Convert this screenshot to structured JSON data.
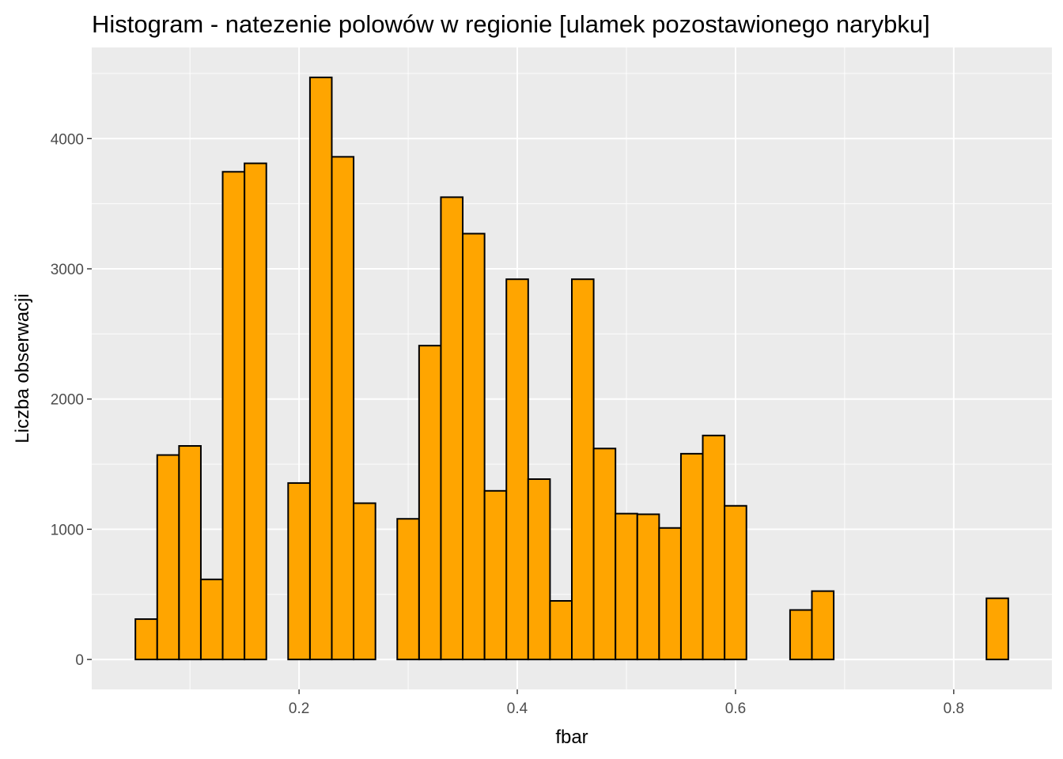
{
  "chart_data": {
    "type": "bar",
    "title": "Histogram - natezenie polowów w regionie [ulamek pozostawionego narybku]",
    "xlabel": "fbar",
    "ylabel": "Liczba obserwacji",
    "bin_width": 0.02,
    "bins": [
      {
        "x_start": 0.05,
        "x_end": 0.07,
        "count": 310
      },
      {
        "x_start": 0.07,
        "x_end": 0.09,
        "count": 1570
      },
      {
        "x_start": 0.09,
        "x_end": 0.11,
        "count": 1640
      },
      {
        "x_start": 0.11,
        "x_end": 0.13,
        "count": 615
      },
      {
        "x_start": 0.13,
        "x_end": 0.15,
        "count": 3745
      },
      {
        "x_start": 0.15,
        "x_end": 0.17,
        "count": 3810
      },
      {
        "x_start": 0.17,
        "x_end": 0.19,
        "count": 0
      },
      {
        "x_start": 0.19,
        "x_end": 0.21,
        "count": 1355
      },
      {
        "x_start": 0.21,
        "x_end": 0.23,
        "count": 4470
      },
      {
        "x_start": 0.23,
        "x_end": 0.25,
        "count": 3860
      },
      {
        "x_start": 0.25,
        "x_end": 0.27,
        "count": 1200
      },
      {
        "x_start": 0.27,
        "x_end": 0.29,
        "count": 0
      },
      {
        "x_start": 0.29,
        "x_end": 0.31,
        "count": 1080
      },
      {
        "x_start": 0.31,
        "x_end": 0.33,
        "count": 2410
      },
      {
        "x_start": 0.33,
        "x_end": 0.35,
        "count": 3550
      },
      {
        "x_start": 0.35,
        "x_end": 0.37,
        "count": 3270
      },
      {
        "x_start": 0.37,
        "x_end": 0.39,
        "count": 1295
      },
      {
        "x_start": 0.39,
        "x_end": 0.41,
        "count": 2920
      },
      {
        "x_start": 0.41,
        "x_end": 0.43,
        "count": 1385
      },
      {
        "x_start": 0.43,
        "x_end": 0.45,
        "count": 450
      },
      {
        "x_start": 0.45,
        "x_end": 0.47,
        "count": 2920
      },
      {
        "x_start": 0.47,
        "x_end": 0.49,
        "count": 1620
      },
      {
        "x_start": 0.49,
        "x_end": 0.51,
        "count": 1120
      },
      {
        "x_start": 0.51,
        "x_end": 0.53,
        "count": 1115
      },
      {
        "x_start": 0.53,
        "x_end": 0.55,
        "count": 1010
      },
      {
        "x_start": 0.55,
        "x_end": 0.57,
        "count": 1580
      },
      {
        "x_start": 0.57,
        "x_end": 0.59,
        "count": 1720
      },
      {
        "x_start": 0.59,
        "x_end": 0.61,
        "count": 1180
      },
      {
        "x_start": 0.61,
        "x_end": 0.63,
        "count": 0
      },
      {
        "x_start": 0.63,
        "x_end": 0.65,
        "count": 0
      },
      {
        "x_start": 0.65,
        "x_end": 0.67,
        "count": 380
      },
      {
        "x_start": 0.67,
        "x_end": 0.69,
        "count": 525
      },
      {
        "x_start": 0.69,
        "x_end": 0.71,
        "count": 0
      },
      {
        "x_start": 0.71,
        "x_end": 0.73,
        "count": 0
      },
      {
        "x_start": 0.73,
        "x_end": 0.75,
        "count": 0
      },
      {
        "x_start": 0.75,
        "x_end": 0.77,
        "count": 0
      },
      {
        "x_start": 0.77,
        "x_end": 0.79,
        "count": 0
      },
      {
        "x_start": 0.79,
        "x_end": 0.81,
        "count": 0
      },
      {
        "x_start": 0.81,
        "x_end": 0.83,
        "count": 0
      },
      {
        "x_start": 0.83,
        "x_end": 0.85,
        "count": 470
      }
    ],
    "xlim": [
      0.01,
      0.89
    ],
    "ylim": [
      -230,
      4700
    ],
    "x_ticks": [
      0.2,
      0.4,
      0.6,
      0.8
    ],
    "x_tick_labels": [
      "0.2",
      "0.4",
      "0.6",
      "0.8"
    ],
    "x_minor_ticks": [
      0.1,
      0.3,
      0.5,
      0.7
    ],
    "y_ticks": [
      0,
      1000,
      2000,
      3000,
      4000
    ],
    "y_tick_labels": [
      "0",
      "1000",
      "2000",
      "3000",
      "4000"
    ],
    "y_minor_ticks": [
      500,
      1500,
      2500,
      3500,
      4500
    ],
    "grid": true,
    "legend": "none",
    "colors": {
      "bar_fill": "#FFA500",
      "bar_outline": "#000000",
      "panel_background": "#EBEBEB",
      "grid": "#FFFFFF"
    }
  }
}
